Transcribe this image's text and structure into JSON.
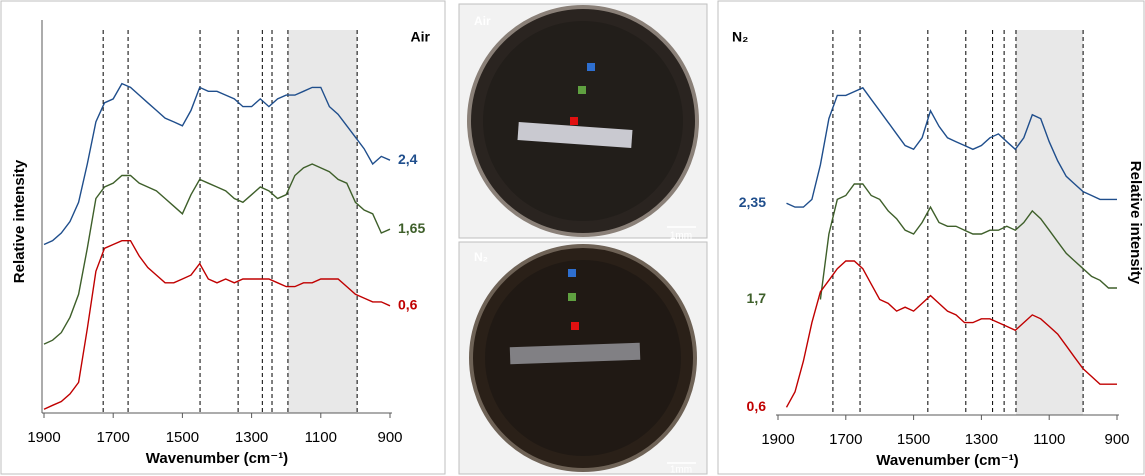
{
  "chart_data": [
    {
      "type": "line",
      "title": "Air",
      "title_corner": "top-right",
      "xlabel": "Wavenumber (cm⁻¹)",
      "ylabel": "Relative intensity",
      "ylabel_side": "left",
      "label_side": "right",
      "xlim": [
        1900,
        900
      ],
      "xticks": [
        1900,
        1700,
        1500,
        1300,
        1100,
        900
      ],
      "ylim": [
        0,
        10
      ],
      "vlines": [
        1729,
        1657,
        1449,
        1339,
        1269,
        1241,
        1195,
        995
      ],
      "shaded_range": [
        1195,
        995
      ],
      "shade_color": "#e8e8e8",
      "x": [
        1900,
        1875,
        1850,
        1825,
        1800,
        1775,
        1750,
        1725,
        1700,
        1675,
        1650,
        1625,
        1600,
        1575,
        1550,
        1525,
        1500,
        1475,
        1450,
        1425,
        1400,
        1375,
        1350,
        1325,
        1300,
        1275,
        1250,
        1225,
        1200,
        1175,
        1150,
        1125,
        1100,
        1075,
        1050,
        1025,
        1000,
        975,
        950,
        925,
        900
      ],
      "series": [
        {
          "name": "2,4",
          "color": "#1f4e8c",
          "values": [
            4.4,
            4.5,
            4.7,
            5.0,
            5.5,
            6.5,
            7.6,
            8.1,
            8.2,
            8.6,
            8.5,
            8.3,
            8.1,
            7.9,
            7.7,
            7.6,
            7.5,
            7.9,
            8.5,
            8.4,
            8.4,
            8.3,
            8.2,
            8.0,
            8.0,
            8.2,
            8.0,
            8.2,
            8.3,
            8.3,
            8.4,
            8.5,
            8.5,
            8.0,
            7.8,
            7.5,
            7.2,
            6.9,
            6.5,
            6.7,
            6.6
          ]
        },
        {
          "name": "1,65",
          "color": "#3e5f2a",
          "values": [
            1.8,
            1.9,
            2.1,
            2.5,
            3.1,
            4.3,
            5.6,
            5.9,
            6.0,
            6.2,
            6.2,
            6.0,
            5.9,
            5.8,
            5.6,
            5.4,
            5.2,
            5.7,
            6.1,
            6.0,
            5.9,
            5.8,
            5.6,
            5.5,
            5.7,
            5.9,
            5.8,
            5.6,
            5.7,
            6.2,
            6.4,
            6.5,
            6.4,
            6.3,
            6.1,
            6.0,
            5.5,
            5.3,
            5.2,
            4.7,
            4.8
          ]
        },
        {
          "name": "0,6",
          "color": "#c00000",
          "values": [
            0.1,
            0.2,
            0.3,
            0.5,
            0.8,
            2.2,
            3.7,
            4.3,
            4.4,
            4.5,
            4.5,
            4.1,
            3.8,
            3.6,
            3.4,
            3.4,
            3.5,
            3.6,
            3.9,
            3.5,
            3.4,
            3.5,
            3.4,
            3.5,
            3.5,
            3.5,
            3.5,
            3.4,
            3.3,
            3.3,
            3.4,
            3.4,
            3.5,
            3.5,
            3.5,
            3.3,
            3.1,
            3.0,
            2.9,
            2.9,
            2.8
          ]
        }
      ]
    },
    {
      "type": "line",
      "title": "N₂",
      "title_corner": "top-left",
      "xlabel": "Wavenumber (cm⁻¹)",
      "ylabel": "Relative intensity",
      "ylabel_side": "right",
      "label_side": "left",
      "xlim": [
        1900,
        900
      ],
      "xticks": [
        1900,
        1700,
        1500,
        1300,
        1100,
        900
      ],
      "ylim": [
        0,
        10
      ],
      "vlines": [
        1738,
        1658,
        1458,
        1346,
        1267,
        1233,
        1198,
        1000
      ],
      "shaded_range": [
        1198,
        1000
      ],
      "shade_color": "#e8e8e8",
      "x": [
        1875,
        1850,
        1825,
        1800,
        1775,
        1750,
        1725,
        1700,
        1675,
        1650,
        1625,
        1600,
        1575,
        1550,
        1525,
        1500,
        1475,
        1450,
        1425,
        1400,
        1375,
        1350,
        1325,
        1300,
        1275,
        1250,
        1225,
        1200,
        1175,
        1150,
        1125,
        1100,
        1075,
        1050,
        1025,
        1000,
        975,
        950,
        925,
        900
      ],
      "series": [
        {
          "name": "2,35",
          "color": "#1f4e8c",
          "values": [
            5.5,
            5.4,
            5.4,
            5.6,
            6.5,
            7.7,
            8.3,
            8.3,
            8.4,
            8.5,
            8.2,
            7.9,
            7.6,
            7.3,
            7.0,
            6.9,
            7.2,
            7.9,
            7.5,
            7.2,
            7.1,
            7.0,
            6.9,
            7.0,
            7.2,
            7.3,
            7.1,
            6.9,
            7.2,
            7.8,
            7.7,
            7.1,
            6.6,
            6.2,
            6.0,
            5.8,
            5.7,
            5.6,
            5.6,
            5.6
          ]
        },
        {
          "name": "1,7",
          "color": "#3e5f2a",
          "values": [
            null,
            null,
            null,
            null,
            3.0,
            4.7,
            5.6,
            5.7,
            6.0,
            6.0,
            5.7,
            5.6,
            5.3,
            5.1,
            4.8,
            4.7,
            5.0,
            5.4,
            5.0,
            4.9,
            4.9,
            4.8,
            4.7,
            4.7,
            4.8,
            4.8,
            4.9,
            4.8,
            5.0,
            5.3,
            5.1,
            4.8,
            4.5,
            4.2,
            4.0,
            3.8,
            3.6,
            3.5,
            3.3,
            3.3
          ]
        },
        {
          "name": "0,6",
          "color": "#c00000",
          "values": [
            0.2,
            0.6,
            1.4,
            2.4,
            3.2,
            3.5,
            3.8,
            4.0,
            4.0,
            3.8,
            3.4,
            3.0,
            2.9,
            2.7,
            2.8,
            2.7,
            2.9,
            3.1,
            2.9,
            2.7,
            2.6,
            2.4,
            2.4,
            2.5,
            2.5,
            2.4,
            2.3,
            2.2,
            2.4,
            2.6,
            2.5,
            2.3,
            2.1,
            1.8,
            1.5,
            1.2,
            1.0,
            0.8,
            0.8,
            0.8
          ]
        }
      ]
    }
  ],
  "images": [
    {
      "label": "Air",
      "scale_bar": "1mm"
    },
    {
      "label": "N₂",
      "scale_bar": "1mm"
    }
  ]
}
